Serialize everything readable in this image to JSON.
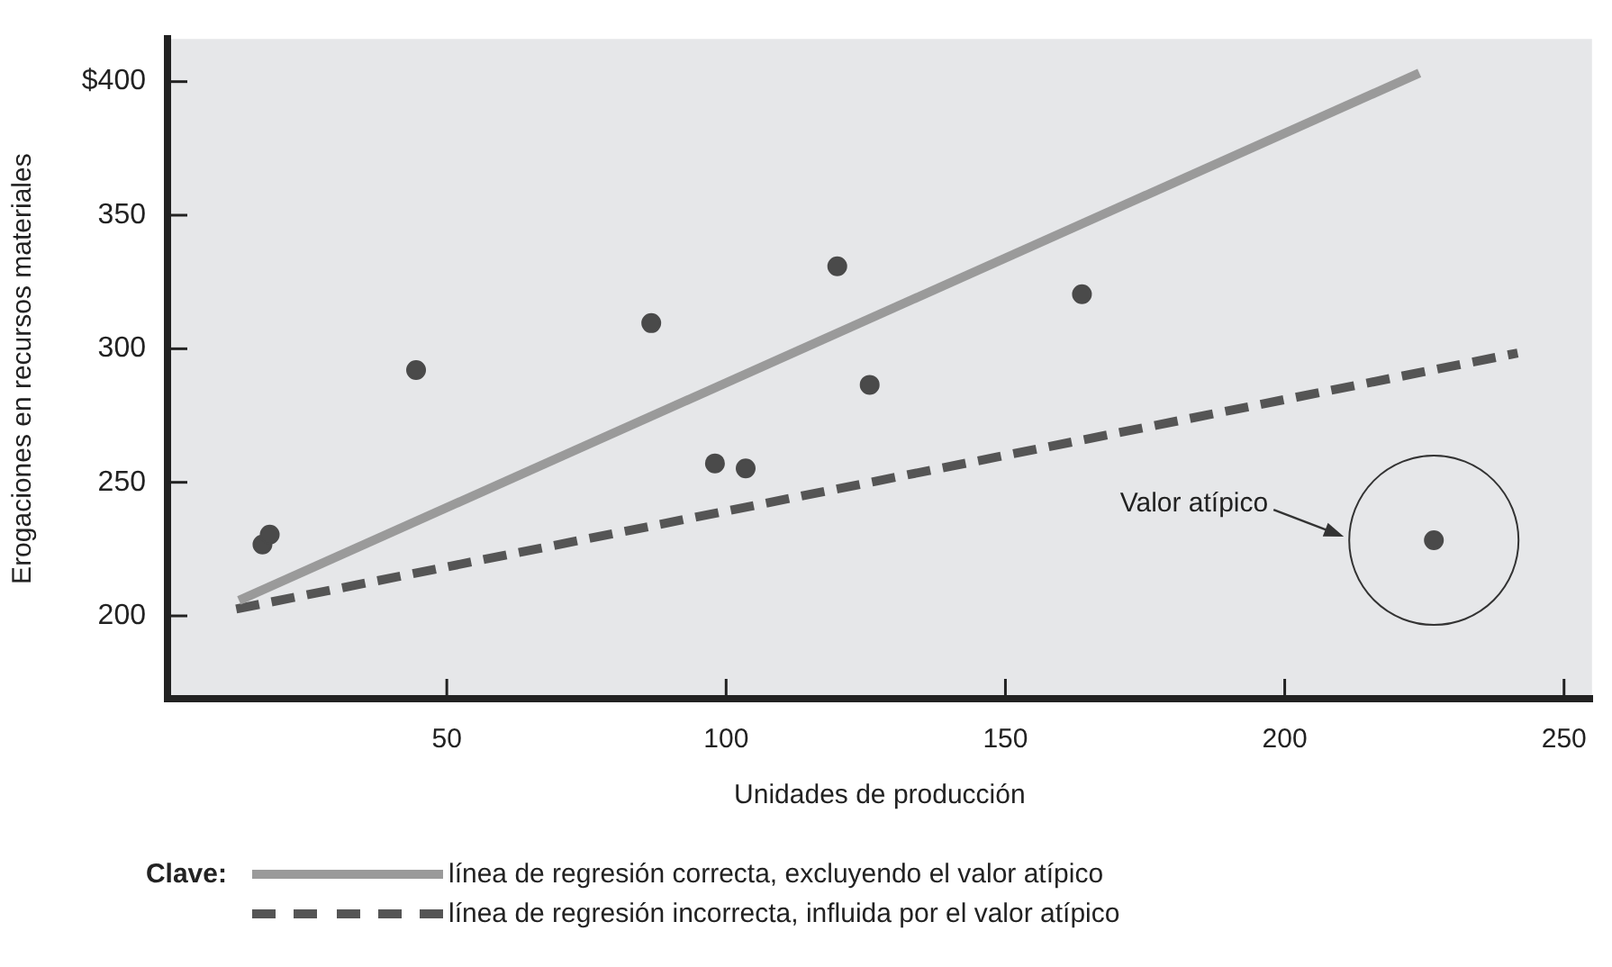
{
  "chart_data": {
    "type": "scatter",
    "xlabel": "Unidades de producción",
    "ylabel": "Erogaciones en recursos materiales",
    "legend_title": "Clave:",
    "xlim": [
      0,
      255
    ],
    "xticks": [
      50,
      100,
      150,
      200,
      250
    ],
    "ylim": [
      169,
      416
    ],
    "yticks": [
      200,
      250,
      300,
      350,
      {
        "value": 400,
        "label": "$400"
      }
    ],
    "grid": false,
    "legend": "bottom",
    "series": [
      {
        "color": "#4a4a4a",
        "marker": "circle",
        "x": [
          17.0,
          18.3,
          44.5,
          86.6,
          98.0,
          103.5,
          119.9,
          125.7,
          163.7,
          226.7
        ],
        "values": [
          226.7,
          230.4,
          292,
          309.6,
          257.1,
          255.2,
          330.9,
          286.5,
          320.4,
          228.3
        ]
      },
      {
        "type": "line",
        "name": "línea de regresión correcta, excluyendo el valor atípico",
        "color": "#9a9a9a",
        "line_style": "solid",
        "marker": "none",
        "x": [
          12.8,
          224.1
        ],
        "values": [
          205.8,
          403.2
        ]
      },
      {
        "type": "line",
        "name": "línea de regresión incorrecta, influida por el valor atípico",
        "color": "#555555",
        "line_style": "dashed",
        "marker": "none",
        "x": [
          12.3,
          241.7
        ],
        "values": [
          202.6,
          298.4
        ]
      }
    ],
    "annotations": [
      "Valor atípico"
    ]
  }
}
